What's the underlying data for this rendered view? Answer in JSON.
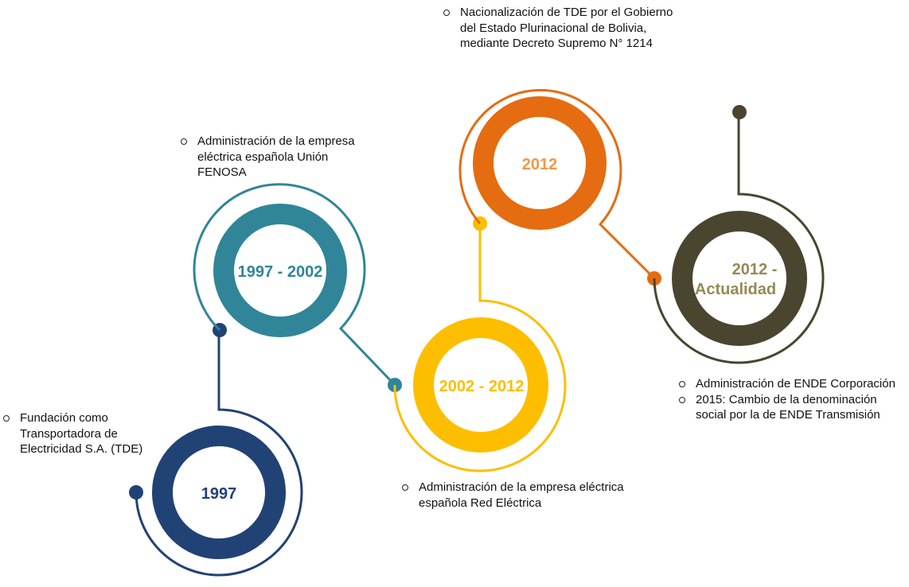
{
  "colors": {
    "navy": "#214275",
    "teal": "#308599",
    "yellow": "#FDBE00",
    "orange": "#E56C10",
    "olive": "#4A452F",
    "olive_text": "#948A54",
    "orange_text": "#F79646"
  },
  "milestones": [
    {
      "year": "1997",
      "items": [
        "Fundación como Transportadora de Electricidad S.A. (TDE)"
      ]
    },
    {
      "year": "1997 - 2002",
      "items": [
        "Administración de la empresa eléctrica española Unión FENOSA"
      ]
    },
    {
      "year": "2002 - 2012",
      "items": [
        "Administración de la empresa eléctrica española Red Eléctrica"
      ]
    },
    {
      "year": "2012",
      "items": [
        "Nacionalización de TDE  por el Gobierno del Estado Plurinacional de Bolivia, mediante Decreto Supremo N° 1214"
      ]
    },
    {
      "year_line1": "2012 -",
      "year_line2": "Actualidad",
      "items": [
        "Administración de ENDE Corporación",
        "2015: Cambio de la denominación social por la de ENDE Transmisión"
      ]
    }
  ]
}
